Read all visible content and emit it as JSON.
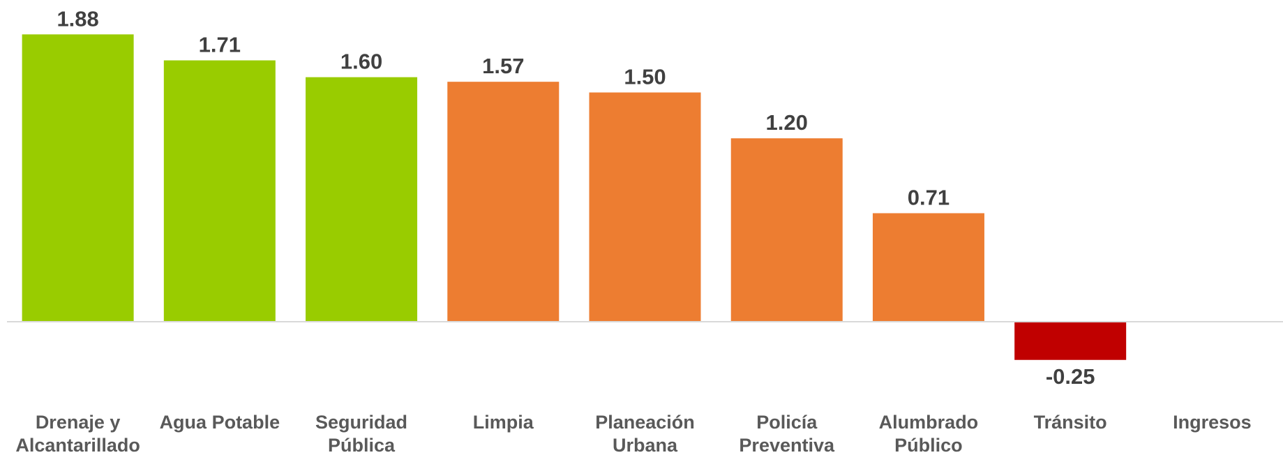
{
  "chart_data": {
    "type": "bar",
    "categories": [
      [
        "Drenaje y",
        "Alcantarillado"
      ],
      [
        "Agua Potable"
      ],
      [
        "Seguridad",
        "Pública"
      ],
      [
        "Limpia"
      ],
      [
        "Planeación",
        "Urbana"
      ],
      [
        "Policía",
        "Preventiva"
      ],
      [
        "Alumbrado",
        "Público"
      ],
      [
        "Tránsito"
      ],
      [
        "Ingresos"
      ]
    ],
    "values": [
      1.88,
      1.71,
      1.6,
      1.57,
      1.5,
      1.2,
      0.71,
      -0.25,
      null
    ],
    "value_labels": [
      "1.88",
      "1.71",
      "1.60",
      "1.57",
      "1.50",
      "1.20",
      "0.71",
      "-0.25",
      ""
    ],
    "colors": [
      "#99CC00",
      "#99CC00",
      "#99CC00",
      "#ED7D31",
      "#ED7D31",
      "#ED7D31",
      "#ED7D31",
      "#C00000",
      "#C00000"
    ],
    "axis_color": "#D9D9D9",
    "ylim": [
      -0.3,
      1.9
    ],
    "grid": false,
    "legend": "none",
    "title": "",
    "xlabel": "",
    "ylabel": ""
  }
}
